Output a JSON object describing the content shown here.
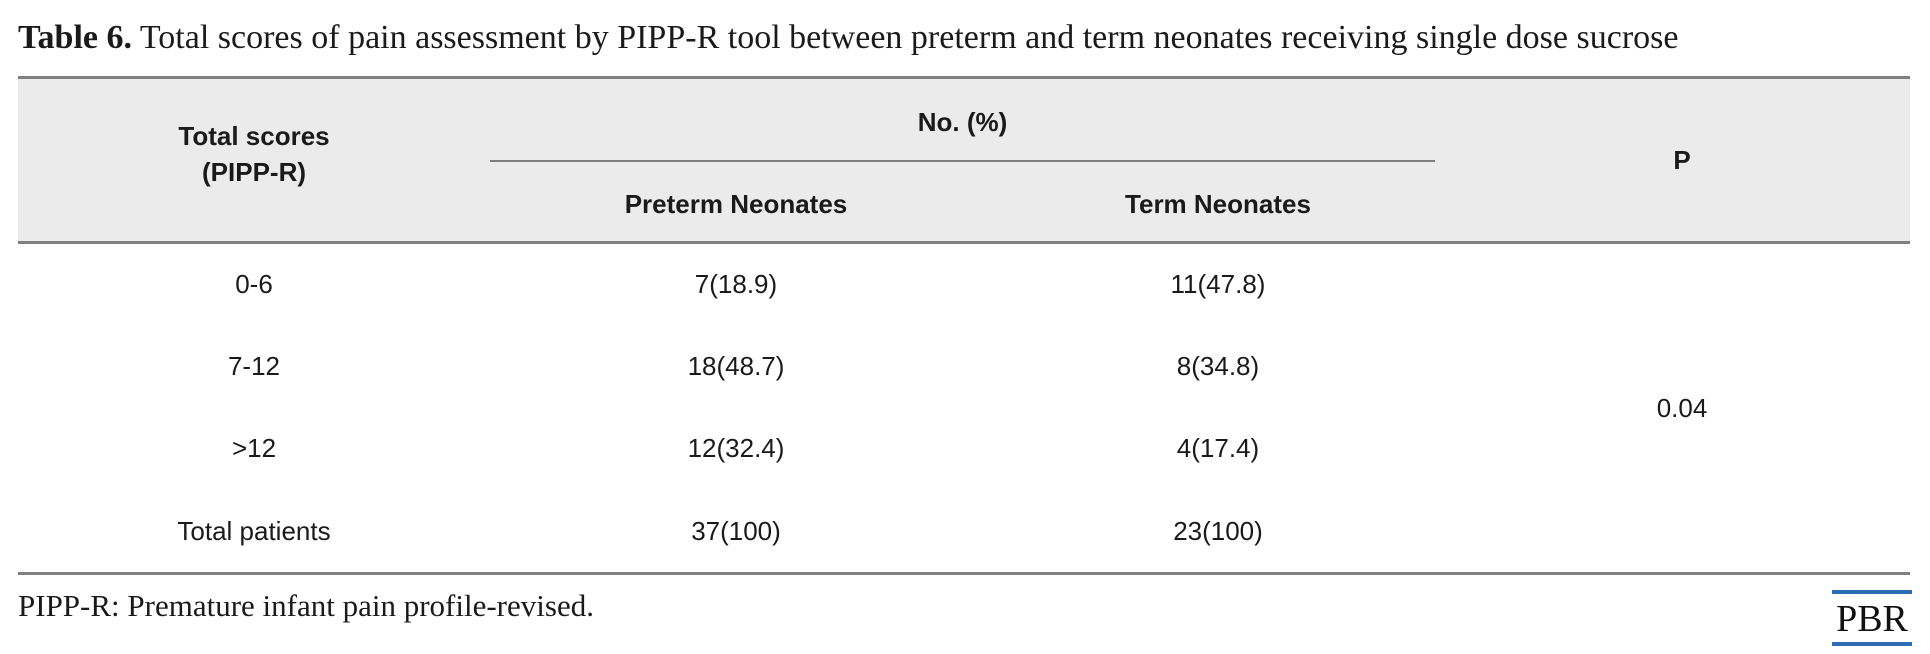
{
  "caption": {
    "label": "Table 6.",
    "text": "Total scores of pain assessment by PIPP-R tool between preterm and term neonates receiving single dose sucrose"
  },
  "table": {
    "header": {
      "total_scores_line1": "Total scores",
      "total_scores_line2": "(PIPP-R)",
      "group": "No. (%)",
      "preterm": "Preterm Neonates",
      "term": "Term Neonates",
      "p": "P"
    },
    "rows": [
      {
        "score": "0-6",
        "preterm": "7(18.9)",
        "term": "11(47.8)"
      },
      {
        "score": "7-12",
        "preterm": "18(48.7)",
        "term": "8(34.8)"
      },
      {
        "score": ">12",
        "preterm": "12(32.4)",
        "term": "4(17.4)"
      },
      {
        "score": "Total patients",
        "preterm": "37(100)",
        "term": "23(100)"
      }
    ],
    "p_value": "0.04"
  },
  "footnote": "PIPP-R: Premature infant pain profile-revised.",
  "logo": {
    "text": "PBR",
    "accent_color": "#2e6db4"
  }
}
